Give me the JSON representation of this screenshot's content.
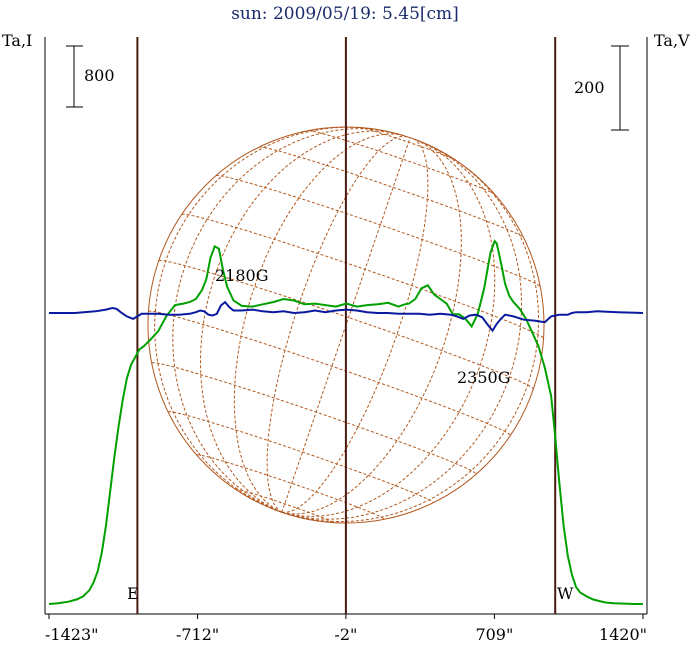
{
  "chart_data": {
    "type": "line",
    "title": "sun: 2009/05/19: 5.45[cm]",
    "left_axis_label": "Ta,I",
    "right_axis_label": "Ta,V",
    "x_unit": "arcsec",
    "x_ticks": [
      "-1423\"",
      "-712\"",
      "-2\"",
      "709\"",
      "1420\""
    ],
    "x_tick_values": [
      -1423,
      -712,
      -2,
      709,
      1420
    ],
    "xlim": [
      -1423,
      1420
    ],
    "scale_bar_i": {
      "label": "800",
      "value": 800
    },
    "scale_bar_v": {
      "label": "200",
      "value": 200
    },
    "vertical_markers": [
      {
        "name": "limb-east",
        "x": -1000
      },
      {
        "name": "disk-center",
        "x": -2
      },
      {
        "name": "limb-west",
        "x": 1000
      }
    ],
    "disk_labels": {
      "east": "E",
      "west": "W"
    },
    "annotations": [
      {
        "text": "2180G",
        "x": -720
      },
      {
        "text": "2350G",
        "x": 700
      }
    ],
    "colors": {
      "intensity": "#00a000",
      "polarization": "#0a1aa0",
      "markers": "#4a1a10",
      "disk_grid": "#b2581e",
      "title": "#1a2a6a",
      "text": "#000000"
    },
    "series": [
      {
        "name": "Ta,I",
        "x": [
          -1423,
          -1380,
          -1330,
          -1290,
          -1260,
          -1230,
          -1210,
          -1190,
          -1170,
          -1150,
          -1130,
          -1110,
          -1090,
          -1070,
          -1050,
          -1030,
          -1010,
          -990,
          -970,
          -940,
          -900,
          -860,
          -820,
          -780,
          -750,
          -720,
          -690,
          -670,
          -650,
          -630,
          -610,
          -590,
          -570,
          -540,
          -500,
          -450,
          -400,
          -350,
          -300,
          -250,
          -200,
          -150,
          -100,
          -50,
          0,
          50,
          100,
          150,
          200,
          250,
          280,
          300,
          330,
          360,
          390,
          420,
          450,
          480,
          510,
          540,
          570,
          600,
          630,
          660,
          690,
          710,
          720,
          740,
          760,
          780,
          800,
          830,
          860,
          890,
          920,
          950,
          980,
          1000,
          1020,
          1040,
          1060,
          1080,
          1100,
          1120,
          1150,
          1180,
          1210,
          1240,
          1280,
          1330,
          1380,
          1420
        ],
        "y": [
          -2480,
          -2470,
          -2450,
          -2420,
          -2380,
          -2300,
          -2200,
          -2050,
          -1800,
          -1450,
          -1000,
          -550,
          -150,
          200,
          480,
          660,
          760,
          860,
          900,
          980,
          1100,
          1300,
          1440,
          1460,
          1480,
          1520,
          1640,
          1780,
          2060,
          2210,
          2180,
          1900,
          1680,
          1500,
          1430,
          1420,
          1450,
          1480,
          1520,
          1500,
          1450,
          1460,
          1440,
          1420,
          1460,
          1420,
          1440,
          1450,
          1470,
          1420,
          1450,
          1460,
          1520,
          1660,
          1700,
          1580,
          1520,
          1460,
          1320,
          1320,
          1260,
          1160,
          1330,
          1660,
          2130,
          2280,
          2250,
          2000,
          1720,
          1560,
          1480,
          1390,
          1260,
          1080,
          900,
          620,
          250,
          -280,
          -900,
          -1450,
          -1850,
          -2100,
          -2260,
          -2330,
          -2380,
          -2420,
          -2440,
          -2460,
          -2470,
          -2475,
          -2480,
          -2480
        ]
      },
      {
        "name": "Ta,V",
        "x": [
          -1423,
          -1300,
          -1200,
          -1150,
          -1120,
          -1100,
          -1080,
          -1050,
          -1020,
          -1000,
          -980,
          -950,
          -900,
          -850,
          -800,
          -750,
          -720,
          -700,
          -680,
          -660,
          -640,
          -620,
          -600,
          -580,
          -560,
          -540,
          -500,
          -450,
          -400,
          -350,
          -300,
          -250,
          -200,
          -150,
          -100,
          -50,
          0,
          50,
          100,
          150,
          200,
          250,
          300,
          350,
          400,
          450,
          500,
          530,
          560,
          590,
          620,
          650,
          680,
          700,
          720,
          740,
          760,
          800,
          850,
          900,
          950,
          980,
          1000,
          1020,
          1040,
          1060,
          1080,
          1100,
          1150,
          1200,
          1300,
          1420
        ],
        "y": [
          0,
          0,
          4,
          8,
          12,
          10,
          2,
          -8,
          -14,
          -8,
          -2,
          -2,
          -2,
          -4,
          -4,
          -2,
          2,
          6,
          4,
          -4,
          -6,
          -2,
          18,
          26,
          14,
          6,
          6,
          8,
          4,
          2,
          4,
          0,
          2,
          6,
          2,
          6,
          8,
          6,
          2,
          0,
          0,
          -2,
          -2,
          -2,
          -4,
          -2,
          -4,
          -8,
          -14,
          -6,
          -4,
          -10,
          -30,
          -42,
          -26,
          -14,
          -4,
          -8,
          -16,
          -18,
          -22,
          -8,
          -6,
          -4,
          -4,
          -4,
          0,
          2,
          2,
          4,
          2,
          0
        ]
      }
    ]
  }
}
